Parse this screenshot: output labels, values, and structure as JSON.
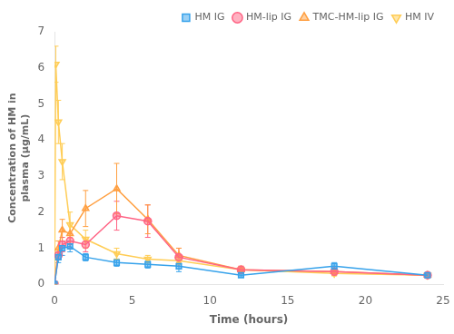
{
  "chart_data": {
    "type": "line",
    "xlabel": "Time (hours)",
    "ylabel": "Concentration of HM in\nplasma (μg/mL)",
    "xlim": [
      0,
      25
    ],
    "ylim": [
      0,
      7
    ],
    "xticks": [
      0,
      5,
      10,
      15,
      20,
      25
    ],
    "yticks": [
      0,
      1,
      2,
      3,
      4,
      5,
      6,
      7
    ],
    "grid": false,
    "legend": "upper right",
    "series": [
      {
        "name": "HM IG",
        "marker": "square",
        "x": [
          0,
          0.25,
          0.5,
          1,
          2,
          4,
          6,
          8,
          12,
          18,
          24
        ],
        "values": [
          0,
          0.75,
          1.0,
          1.05,
          0.75,
          0.6,
          0.55,
          0.5,
          0.25,
          0.5,
          0.25
        ],
        "yerr": [
          0,
          0.15,
          0.2,
          0.15,
          0.1,
          0.1,
          0.1,
          0.15,
          0.05,
          0.1,
          0.05
        ]
      },
      {
        "name": "HM-lip IG",
        "marker": "circle",
        "x": [
          0,
          0.25,
          0.5,
          1,
          2,
          4,
          6,
          8,
          12,
          18,
          24
        ],
        "values": [
          0,
          0.8,
          1.1,
          1.2,
          1.1,
          1.9,
          1.75,
          0.75,
          0.4,
          0.35,
          0.25
        ],
        "yerr": [
          0,
          0.1,
          0.2,
          0.2,
          0.2,
          0.4,
          0.45,
          0.25,
          0.1,
          0.1,
          0.05
        ]
      },
      {
        "name": "TMC-HM-lip IG",
        "marker": "triangle-up",
        "x": [
          0,
          0.25,
          0.5,
          1,
          2,
          4,
          6,
          8,
          12,
          18,
          24
        ],
        "values": [
          0,
          1.0,
          1.5,
          1.4,
          2.1,
          2.65,
          1.8,
          0.8,
          0.4,
          0.35,
          0.25
        ],
        "yerr": [
          0,
          0.2,
          0.3,
          0.3,
          0.5,
          0.7,
          0.4,
          0.2,
          0.1,
          0.1,
          0.05
        ]
      },
      {
        "name": "HM IV",
        "marker": "triangle-down",
        "x": [
          0,
          0.083,
          0.25,
          0.5,
          1,
          2,
          4,
          6,
          8,
          12,
          18,
          24
        ],
        "values": [
          0,
          6.1,
          4.5,
          3.4,
          1.65,
          1.25,
          0.85,
          0.7,
          0.65,
          0.4,
          0.3,
          0.25
        ],
        "yerr": [
          0,
          0.5,
          0.6,
          0.5,
          0.35,
          0.25,
          0.15,
          0.1,
          0.1,
          0.08,
          0.07,
          0.05
        ]
      }
    ]
  }
}
